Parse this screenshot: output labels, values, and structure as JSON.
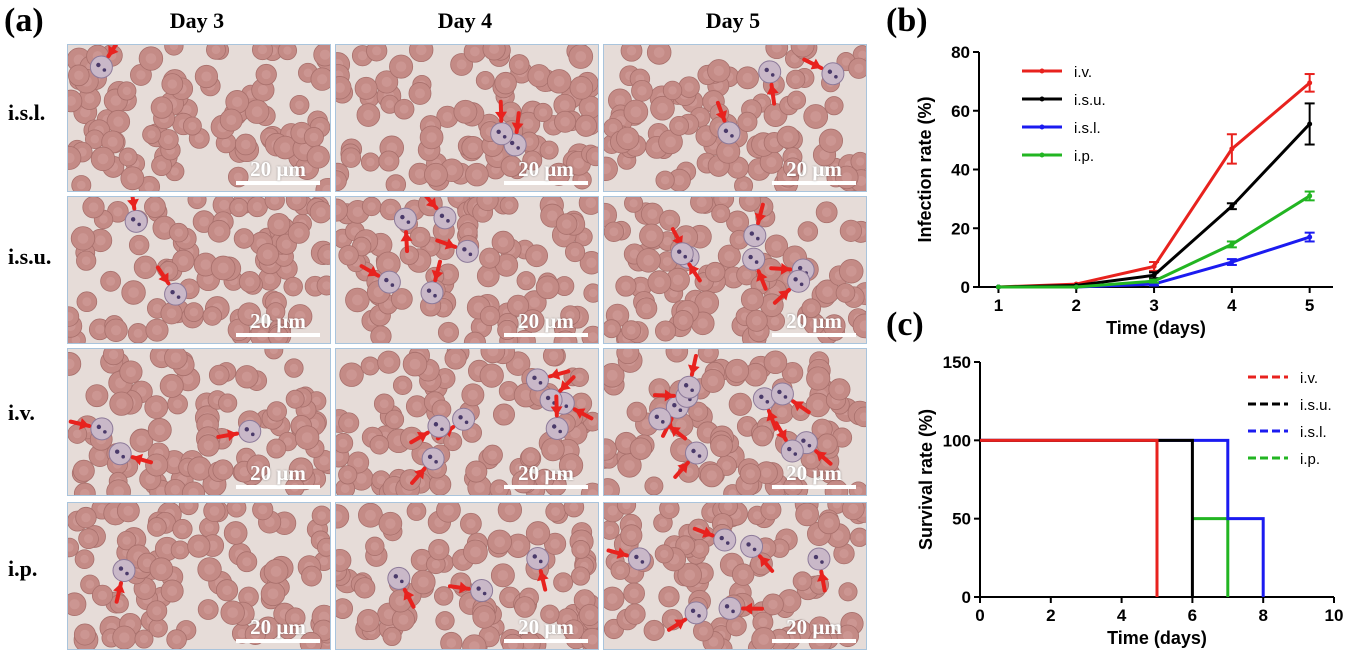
{
  "panels": {
    "a": {
      "letter": "(a)",
      "columns": [
        "Day 3",
        "Day 4",
        "Day 5"
      ],
      "rows": [
        "i.s.l.",
        "i.s.u.",
        "i.v.",
        "i.p."
      ],
      "scale_bar": "20 μm"
    },
    "b": {
      "letter": "(b)"
    },
    "c": {
      "letter": "(c)"
    }
  },
  "colors": {
    "i.v.": "#e8221e",
    "i.s.u.": "#000000",
    "i.s.l.": "#1b1bf0",
    "i.p.": "#22b522",
    "arrow": "#e8221e",
    "cell": "#c48b86",
    "micro_bg": "#e6dcd8",
    "frame": "#a9c4dc"
  },
  "chart_data": [
    {
      "panel": "b",
      "type": "line",
      "xlabel": "Time (days)",
      "ylabel": "Infection rate (%)",
      "x": [
        1,
        2,
        3,
        4,
        5
      ],
      "xticks": [
        1,
        2,
        3,
        4,
        5
      ],
      "xlim": [
        0.75,
        5.3
      ],
      "ylim": [
        0,
        80
      ],
      "yticks": [
        0,
        20,
        40,
        60,
        80
      ],
      "legend_position": "top-left",
      "series": [
        {
          "name": "i.v.",
          "values": [
            0,
            1,
            7,
            47,
            69.5
          ],
          "error": [
            0,
            0,
            1.5,
            5,
            3
          ]
        },
        {
          "name": "i.s.u.",
          "values": [
            0,
            0.5,
            4,
            27.5,
            55.5
          ],
          "error": [
            0,
            0,
            1,
            1,
            7
          ]
        },
        {
          "name": "i.s.l.",
          "values": [
            0,
            0,
            1,
            8.5,
            17
          ],
          "error": [
            0,
            0,
            0.5,
            1,
            1.5
          ]
        },
        {
          "name": "i.p.",
          "values": [
            0,
            0,
            2,
            14.5,
            31
          ],
          "error": [
            0,
            0,
            0.5,
            1,
            1.5
          ]
        }
      ]
    },
    {
      "panel": "c",
      "type": "line",
      "xlabel": "Time (days)",
      "ylabel": "Survival rate (%)",
      "xlim": [
        0,
        10
      ],
      "ylim": [
        0,
        150
      ],
      "xticks": [
        0,
        2,
        4,
        6,
        8,
        10
      ],
      "yticks": [
        0,
        50,
        100,
        150
      ],
      "legend_position": "top-right",
      "series": [
        {
          "name": "i.v.",
          "steps": [
            [
              0,
              100
            ],
            [
              5,
              100
            ],
            [
              5,
              0
            ]
          ]
        },
        {
          "name": "i.s.u.",
          "steps": [
            [
              0,
              100
            ],
            [
              6,
              100
            ],
            [
              6,
              0
            ]
          ]
        },
        {
          "name": "i.s.l.",
          "steps": [
            [
              0,
              100
            ],
            [
              7,
              100
            ],
            [
              7,
              50
            ],
            [
              8,
              50
            ],
            [
              8,
              0
            ]
          ]
        },
        {
          "name": "i.p.",
          "steps": [
            [
              6,
              50
            ],
            [
              7,
              50
            ],
            [
              7,
              0
            ]
          ]
        }
      ]
    }
  ]
}
